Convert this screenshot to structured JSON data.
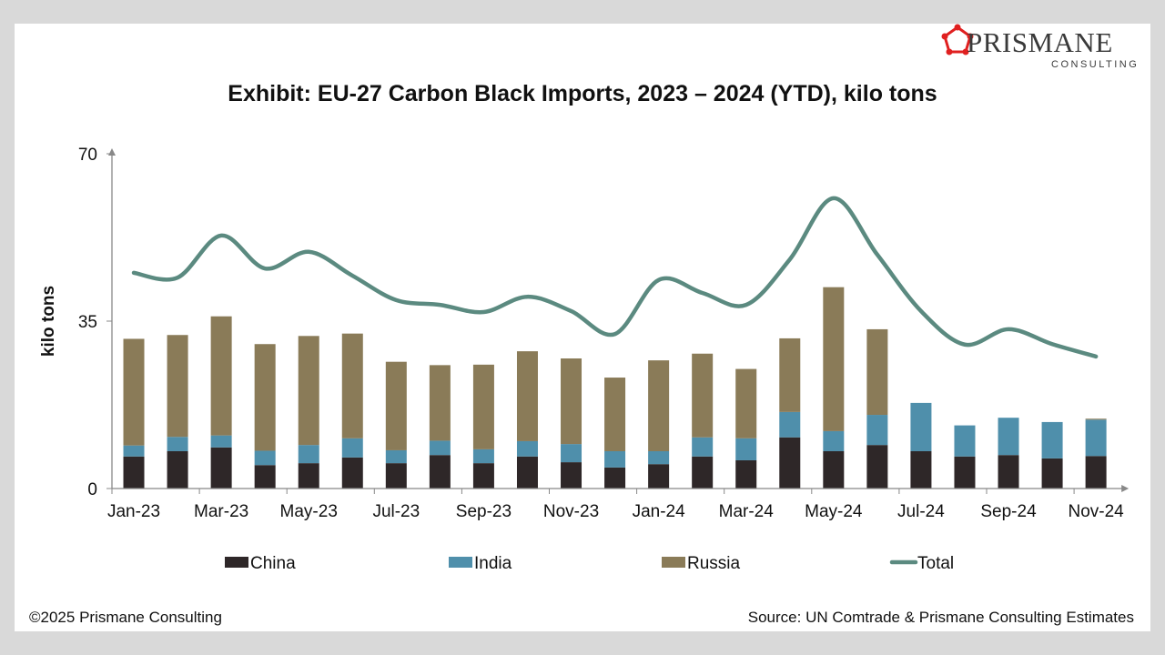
{
  "logo": {
    "name": "PRISMANE",
    "sub": "CONSULTING",
    "icon": "pentagon-ring-logo",
    "color": "#e02020"
  },
  "footer": {
    "copyright": "©2025 Prismane Consulting",
    "source": "Source: UN Comtrade & Prismane Consulting Estimates"
  },
  "chart_data": {
    "type": "bar",
    "stacked": true,
    "title": "Exhibit: EU-27 Carbon Black Imports, 2023 – 2024 (YTD), kilo tons",
    "ylabel": "kilo tons",
    "xlabel": "",
    "ylim": [
      0,
      70
    ],
    "yticks": [
      0,
      35,
      70
    ],
    "grid": false,
    "legend_position": "bottom",
    "categories": [
      "Jan-23",
      "Feb-23",
      "Mar-23",
      "Apr-23",
      "May-23",
      "Jun-23",
      "Jul-23",
      "Aug-23",
      "Sep-23",
      "Oct-23",
      "Nov-23",
      "Dec-23",
      "Jan-24",
      "Feb-24",
      "Mar-24",
      "Apr-24",
      "May-24",
      "Jun-24",
      "Jul-24",
      "Aug-24",
      "Sep-24",
      "Oct-24",
      "Nov-24"
    ],
    "xtick_labels": [
      "Jan-23",
      "Mar-23",
      "May-23",
      "Jul-23",
      "Sep-23",
      "Nov-23",
      "Jan-24",
      "Mar-24",
      "May-24",
      "Jul-24",
      "Sep-24",
      "Nov-24"
    ],
    "series": [
      {
        "name": "China",
        "kind": "bar",
        "color": "#2e2728",
        "values": [
          6.7,
          7.8,
          8.6,
          4.9,
          5.3,
          6.5,
          5.3,
          7.0,
          5.3,
          6.7,
          5.5,
          4.4,
          5.1,
          6.7,
          5.9,
          10.7,
          7.8,
          9.1,
          7.8,
          6.7,
          7.0,
          6.3,
          6.8
        ]
      },
      {
        "name": "India",
        "kind": "bar",
        "color": "#4f8fab",
        "values": [
          2.3,
          3.0,
          2.5,
          3.0,
          3.8,
          4.0,
          2.7,
          3.0,
          2.9,
          3.2,
          3.8,
          3.4,
          2.7,
          4.0,
          4.6,
          5.3,
          4.2,
          6.3,
          10.1,
          6.5,
          7.8,
          7.6,
          7.6
        ]
      },
      {
        "name": "Russia",
        "kind": "bar",
        "color": "#8a7b58",
        "values": [
          22.3,
          21.3,
          24.9,
          22.3,
          22.8,
          21.9,
          18.5,
          15.8,
          17.7,
          18.8,
          17.9,
          15.4,
          19.0,
          17.5,
          14.5,
          15.4,
          30.1,
          17.9,
          0,
          0,
          0,
          0,
          0.2
        ]
      },
      {
        "name": "Total",
        "kind": "line",
        "color": "#5b8a80",
        "values": [
          45.1,
          44.1,
          52.9,
          46.0,
          49.5,
          44.5,
          39.4,
          38.4,
          36.9,
          40.1,
          37.1,
          32.3,
          43.6,
          40.9,
          38.4,
          47.9,
          60.7,
          48.9,
          37.1,
          30.1,
          33.3,
          30.2,
          27.6
        ]
      }
    ]
  }
}
